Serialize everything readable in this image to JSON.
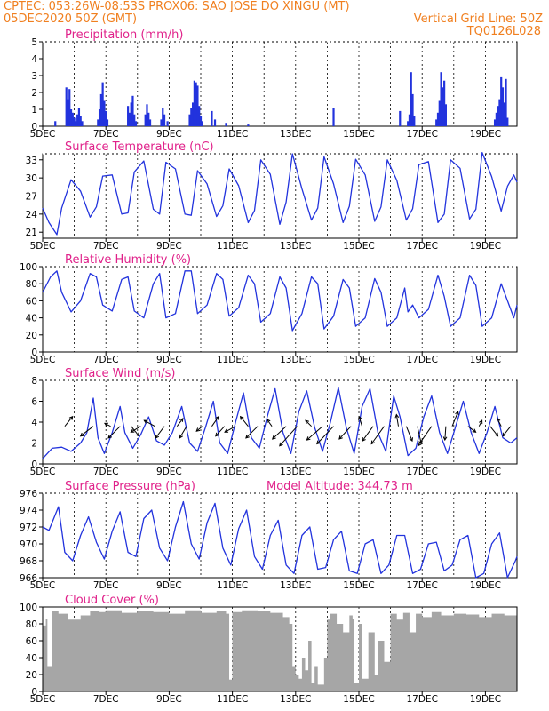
{
  "header": {
    "line1": "CPTEC:  053:26W-08:53S  PROX06: SAO JOSE DO XINGU (MT)",
    "line2_left": "05DEC2020 50Z (GMT)",
    "line2_right": "Vertical Grid Line: 50Z",
    "line3_right": "TQ0126L028"
  },
  "colors": {
    "header": "#f07f1f",
    "title": "#e0218a",
    "line": "#2233dd",
    "cloud": "#a6a6a6",
    "arrow": "#000000"
  },
  "x_axis": {
    "labels": [
      "5DEC",
      "7DEC",
      "9DEC",
      "11DEC",
      "13DEC",
      "15DEC",
      "17DEC",
      "19DEC"
    ],
    "label_days": [
      5,
      7,
      9,
      11,
      13,
      15,
      17,
      19
    ],
    "range_days": [
      5,
      20
    ]
  },
  "chart_data": [
    {
      "type": "bar",
      "title": "Precipitation (mm/h)",
      "ylim": [
        0,
        5
      ],
      "yticks": [
        "0",
        "1",
        "2",
        "3",
        "4",
        "5"
      ],
      "bars": [
        [
          5.4,
          0.3
        ],
        [
          5.75,
          2.3
        ],
        [
          5.8,
          1.6
        ],
        [
          5.85,
          2.2
        ],
        [
          5.9,
          1.0
        ],
        [
          5.95,
          0.8
        ],
        [
          6.0,
          0.5
        ],
        [
          6.05,
          0.3
        ],
        [
          6.1,
          0.7
        ],
        [
          6.15,
          1.1
        ],
        [
          6.2,
          0.6
        ],
        [
          6.25,
          0.3
        ],
        [
          6.75,
          0.4
        ],
        [
          6.8,
          1.0
        ],
        [
          6.85,
          1.9
        ],
        [
          6.9,
          2.6
        ],
        [
          6.95,
          1.5
        ],
        [
          7.0,
          0.9
        ],
        [
          7.05,
          0.4
        ],
        [
          7.7,
          1.2
        ],
        [
          7.75,
          0.8
        ],
        [
          7.8,
          1.4
        ],
        [
          7.85,
          1.8
        ],
        [
          7.9,
          0.7
        ],
        [
          7.95,
          0.3
        ],
        [
          8.25,
          0.7
        ],
        [
          8.3,
          1.3
        ],
        [
          8.35,
          0.8
        ],
        [
          8.4,
          0.4
        ],
        [
          8.75,
          0.4
        ],
        [
          8.8,
          1.1
        ],
        [
          8.85,
          0.7
        ],
        [
          8.95,
          0.3
        ],
        [
          9.65,
          0.7
        ],
        [
          9.7,
          1.1
        ],
        [
          9.75,
          1.4
        ],
        [
          9.8,
          2.7
        ],
        [
          9.85,
          2.6
        ],
        [
          9.9,
          2.4
        ],
        [
          9.95,
          1.2
        ],
        [
          10.0,
          0.6
        ],
        [
          10.05,
          0.3
        ],
        [
          10.35,
          0.9
        ],
        [
          10.45,
          0.4
        ],
        [
          10.8,
          0.2
        ],
        [
          11.5,
          0.1
        ],
        [
          14.2,
          1.1
        ],
        [
          16.3,
          0.9
        ],
        [
          16.55,
          0.3
        ],
        [
          16.6,
          0.7
        ],
        [
          16.65,
          3.2
        ],
        [
          16.7,
          1.9
        ],
        [
          16.75,
          0.6
        ],
        [
          17.45,
          0.4
        ],
        [
          17.5,
          0.8
        ],
        [
          17.55,
          1.5
        ],
        [
          17.6,
          3.2
        ],
        [
          17.65,
          2.3
        ],
        [
          17.7,
          2.7
        ],
        [
          17.75,
          1.3
        ],
        [
          19.3,
          0.4
        ],
        [
          19.35,
          0.8
        ],
        [
          19.4,
          1.2
        ],
        [
          19.45,
          1.6
        ],
        [
          19.5,
          2.9
        ],
        [
          19.55,
          2.3
        ],
        [
          19.6,
          1.4
        ],
        [
          19.65,
          2.8
        ],
        [
          19.7,
          0.5
        ]
      ]
    },
    {
      "type": "line",
      "title": "Surface Temperature (nC)",
      "ylim": [
        20,
        34
      ],
      "yticks": [
        "21",
        "24",
        "27",
        "30",
        "33"
      ],
      "ytick_values": [
        21,
        24,
        27,
        30,
        33
      ],
      "x": [
        5.0,
        5.2,
        5.45,
        5.6,
        5.9,
        6.2,
        6.5,
        6.7,
        6.9,
        7.2,
        7.5,
        7.7,
        7.9,
        8.2,
        8.5,
        8.7,
        8.9,
        9.2,
        9.5,
        9.7,
        9.9,
        10.2,
        10.5,
        10.7,
        10.9,
        11.2,
        11.5,
        11.7,
        11.9,
        12.2,
        12.5,
        12.7,
        12.9,
        13.2,
        13.5,
        13.7,
        13.9,
        14.2,
        14.5,
        14.7,
        14.9,
        15.2,
        15.5,
        15.7,
        15.9,
        16.2,
        16.5,
        16.7,
        16.9,
        17.2,
        17.5,
        17.7,
        17.9,
        18.2,
        18.5,
        18.7,
        18.9,
        19.2,
        19.5,
        19.7,
        19.9,
        20.0
      ],
      "values": [
        25.0,
        22.6,
        20.6,
        25.0,
        29.7,
        27.8,
        23.5,
        25.2,
        30.3,
        30.5,
        24.0,
        24.2,
        31.0,
        32.8,
        24.8,
        24.0,
        32.6,
        31.5,
        24.0,
        23.8,
        31.2,
        29.0,
        23.6,
        25.4,
        31.5,
        28.7,
        22.6,
        24.6,
        33.0,
        30.6,
        22.3,
        26.0,
        34.0,
        28.2,
        23.0,
        25.0,
        33.5,
        29.0,
        22.6,
        25.3,
        33.1,
        30.5,
        22.8,
        25.2,
        33.0,
        29.6,
        23.0,
        24.9,
        32.2,
        32.7,
        22.6,
        24.0,
        33.0,
        31.6,
        23.2,
        24.8,
        34.2,
        30.2,
        24.5,
        28.6,
        30.5,
        29.3
      ]
    },
    {
      "type": "line",
      "title": "Relative Humidity (%)",
      "ylim": [
        0,
        100
      ],
      "yticks": [
        "0",
        "20",
        "40",
        "60",
        "80",
        "100"
      ],
      "ytick_values": [
        0,
        20,
        40,
        60,
        80,
        100
      ],
      "x": [
        5.0,
        5.25,
        5.45,
        5.6,
        5.9,
        6.2,
        6.5,
        6.7,
        6.9,
        7.2,
        7.5,
        7.7,
        7.9,
        8.2,
        8.5,
        8.7,
        8.9,
        9.2,
        9.5,
        9.7,
        9.9,
        10.2,
        10.5,
        10.7,
        10.9,
        11.2,
        11.5,
        11.7,
        11.9,
        12.2,
        12.5,
        12.7,
        12.9,
        13.2,
        13.5,
        13.7,
        13.9,
        14.2,
        14.5,
        14.7,
        14.9,
        15.2,
        15.5,
        15.7,
        15.9,
        16.2,
        16.45,
        16.55,
        16.7,
        16.9,
        17.2,
        17.5,
        17.7,
        17.9,
        18.2,
        18.5,
        18.7,
        18.9,
        19.2,
        19.5,
        19.7,
        19.9,
        20.0
      ],
      "values": [
        70,
        88,
        95,
        70,
        47,
        60,
        92,
        88,
        55,
        48,
        85,
        88,
        48,
        40,
        80,
        92,
        40,
        45,
        95,
        95,
        45,
        55,
        92,
        85,
        42,
        52,
        90,
        80,
        35,
        45,
        88,
        75,
        25,
        45,
        88,
        80,
        27,
        42,
        85,
        75,
        30,
        40,
        86,
        70,
        30,
        40,
        75,
        47,
        55,
        40,
        50,
        90,
        65,
        30,
        40,
        90,
        78,
        30,
        40,
        80,
        60,
        40,
        55
      ]
    },
    {
      "type": "line",
      "title": "Surface Wind (m/s)",
      "ylim": [
        0,
        8
      ],
      "yticks": [
        "0",
        "2",
        "4",
        "6",
        "8"
      ],
      "ytick_values": [
        0,
        2,
        4,
        6,
        8
      ],
      "x": [
        5.0,
        5.3,
        5.6,
        5.9,
        6.2,
        6.4,
        6.6,
        6.75,
        6.95,
        7.2,
        7.45,
        7.6,
        7.85,
        8.1,
        8.35,
        8.6,
        8.85,
        9.1,
        9.4,
        9.65,
        9.9,
        10.15,
        10.4,
        10.6,
        10.85,
        11.1,
        11.35,
        11.6,
        11.85,
        12.1,
        12.35,
        12.6,
        12.85,
        13.1,
        13.35,
        13.6,
        13.85,
        14.1,
        14.35,
        14.6,
        14.85,
        15.1,
        15.35,
        15.6,
        15.85,
        16.1,
        16.3,
        16.55,
        16.8,
        17.05,
        17.3,
        17.55,
        17.8,
        18.05,
        18.3,
        18.55,
        18.8,
        19.05,
        19.3,
        19.55,
        19.8,
        20.0
      ],
      "values": [
        0.5,
        1.5,
        1.6,
        1.2,
        2.0,
        3.0,
        6.3,
        2.5,
        1.0,
        3.0,
        5.5,
        3.0,
        1.5,
        2.8,
        4.5,
        2.2,
        1.8,
        3.0,
        5.5,
        2.0,
        1.2,
        3.5,
        6.0,
        2.0,
        1.0,
        4.0,
        6.8,
        2.5,
        1.5,
        4.5,
        7.2,
        3.0,
        1.0,
        5.0,
        7.0,
        3.5,
        1.2,
        4.0,
        7.3,
        3.5,
        1.0,
        5.5,
        7.2,
        3.0,
        1.2,
        6.5,
        4.5,
        0.8,
        1.5,
        4.5,
        6.5,
        3.0,
        1.0,
        3.5,
        6.0,
        3.0,
        1.0,
        3.0,
        5.5,
        2.5,
        2.0,
        2.5
      ],
      "arrows": [
        {
          "day": 5.7,
          "u": 0.8,
          "v": 1.0
        },
        {
          "day": 6.6,
          "u": -1.3,
          "v": -1.0
        },
        {
          "day": 7.15,
          "u": -0.6,
          "v": 0.3
        },
        {
          "day": 7.45,
          "u": -1.2,
          "v": -1.2
        },
        {
          "day": 7.8,
          "u": 0.8,
          "v": -1.0
        },
        {
          "day": 8.1,
          "u": -1.0,
          "v": -0.6
        },
        {
          "day": 8.55,
          "u": -1.1,
          "v": 0.6
        },
        {
          "day": 8.85,
          "u": -0.9,
          "v": -1.2
        },
        {
          "day": 9.25,
          "u": 0.6,
          "v": 0.8
        },
        {
          "day": 9.55,
          "u": -0.7,
          "v": -1.2
        },
        {
          "day": 10.05,
          "u": -0.6,
          "v": -0.5
        },
        {
          "day": 10.35,
          "u": 0.7,
          "v": 1.0
        },
        {
          "day": 10.75,
          "u": -0.9,
          "v": -1.0
        },
        {
          "day": 11.1,
          "u": -1.1,
          "v": -0.6
        },
        {
          "day": 11.5,
          "u": -0.8,
          "v": 1.0
        },
        {
          "day": 11.8,
          "u": -1.2,
          "v": -1.2
        },
        {
          "day": 12.25,
          "u": -0.5,
          "v": 0.7
        },
        {
          "day": 12.7,
          "u": -1.4,
          "v": -1.3
        },
        {
          "day": 13.05,
          "u": -1.8,
          "v": -2.0
        },
        {
          "day": 13.5,
          "u": -0.6,
          "v": 0.6
        },
        {
          "day": 13.85,
          "u": -1.6,
          "v": -1.4
        },
        {
          "day": 14.2,
          "u": -1.7,
          "v": -1.8
        },
        {
          "day": 14.75,
          "u": -1.2,
          "v": -1.3
        },
        {
          "day": 15.1,
          "u": -0.3,
          "v": 1.0
        },
        {
          "day": 15.45,
          "u": -1.1,
          "v": -1.5
        },
        {
          "day": 15.8,
          "u": -1.3,
          "v": -1.8
        },
        {
          "day": 16.25,
          "u": -0.2,
          "v": 1.2
        },
        {
          "day": 16.5,
          "u": 0.6,
          "v": -1.5
        },
        {
          "day": 16.85,
          "u": 0.4,
          "v": -1.8
        },
        {
          "day": 17.3,
          "u": -1.4,
          "v": -2.0
        },
        {
          "day": 17.75,
          "u": -0.1,
          "v": -1.4
        },
        {
          "day": 17.95,
          "u": 0.6,
          "v": 1.5
        },
        {
          "day": 18.45,
          "u": 0.8,
          "v": -0.6
        },
        {
          "day": 18.8,
          "u": 0.3,
          "v": 0.6
        },
        {
          "day": 19.15,
          "u": 0.8,
          "v": -1.0
        },
        {
          "day": 19.5,
          "u": -0.4,
          "v": 0.8
        },
        {
          "day": 19.8,
          "u": -0.8,
          "v": -1.0
        }
      ]
    },
    {
      "type": "line",
      "title": "Surface Pressure (hPa)",
      "annotation": "Model Altitude: 344.73 m",
      "ylim": [
        966,
        976
      ],
      "yticks": [
        "966",
        "968",
        "970",
        "972",
        "974",
        "976"
      ],
      "ytick_values": [
        966,
        968,
        970,
        972,
        974,
        976
      ],
      "x": [
        5.0,
        5.2,
        5.5,
        5.7,
        5.95,
        6.2,
        6.45,
        6.7,
        6.95,
        7.2,
        7.45,
        7.7,
        7.95,
        8.2,
        8.45,
        8.7,
        8.95,
        9.2,
        9.45,
        9.7,
        9.95,
        10.2,
        10.45,
        10.7,
        10.95,
        11.2,
        11.45,
        11.7,
        11.95,
        12.2,
        12.45,
        12.7,
        12.95,
        13.2,
        13.45,
        13.7,
        13.95,
        14.2,
        14.45,
        14.7,
        14.95,
        15.2,
        15.45,
        15.7,
        15.95,
        16.2,
        16.45,
        16.7,
        16.95,
        17.2,
        17.45,
        17.7,
        17.95,
        18.2,
        18.45,
        18.7,
        18.95,
        19.2,
        19.45,
        19.7,
        19.95,
        20.0
      ],
      "values": [
        972,
        971.6,
        974.4,
        969.0,
        968.0,
        971.0,
        973.2,
        970.2,
        968.2,
        971.5,
        973.8,
        969.0,
        968.5,
        973.0,
        974.0,
        969.5,
        968.0,
        972.0,
        975.0,
        970.0,
        968.2,
        972.5,
        974.8,
        969.5,
        967.5,
        971.8,
        974.0,
        968.5,
        967.0,
        971.0,
        972.8,
        967.5,
        966.5,
        971.0,
        972.0,
        967.0,
        967.2,
        970.5,
        971.5,
        966.8,
        966.5,
        970.0,
        970.5,
        966.5,
        967.5,
        971.0,
        971.0,
        966.5,
        967.0,
        970.0,
        970.2,
        966.8,
        967.5,
        970.5,
        971.0,
        966.0,
        966.5,
        970.0,
        971.3,
        966.0,
        968.0,
        968.5
      ]
    },
    {
      "type": "area",
      "title": "Cloud Cover (%)",
      "ylim": [
        0,
        100
      ],
      "yticks": [
        "0",
        "20",
        "40",
        "60",
        "80",
        "100"
      ],
      "ytick_values": [
        0,
        20,
        40,
        60,
        80,
        100
      ],
      "x": [
        5.0,
        5.1,
        5.15,
        5.3,
        5.5,
        5.8,
        6.2,
        6.5,
        6.8,
        7.0,
        7.5,
        8.0,
        8.5,
        9.0,
        9.5,
        10.0,
        10.5,
        10.8,
        10.9,
        11.0,
        11.3,
        11.8,
        12.2,
        12.6,
        12.8,
        12.9,
        13.0,
        13.1,
        13.2,
        13.3,
        13.4,
        13.5,
        13.6,
        13.7,
        13.9,
        14.0,
        14.1,
        14.3,
        14.5,
        14.7,
        14.8,
        14.85,
        15.0,
        15.1,
        15.3,
        15.5,
        15.6,
        15.8,
        16.0,
        16.2,
        16.4,
        16.6,
        16.8,
        17.0,
        17.3,
        17.6,
        18.0,
        18.4,
        18.8,
        19.2,
        19.6,
        20.0
      ],
      "values": [
        78,
        86,
        30,
        95,
        92,
        85,
        90,
        95,
        94,
        96,
        93,
        95,
        94,
        92,
        96,
        93,
        95,
        92,
        14,
        94,
        96,
        95,
        93,
        88,
        80,
        30,
        20,
        15,
        40,
        25,
        60,
        10,
        30,
        8,
        40,
        85,
        92,
        80,
        70,
        90,
        86,
        10,
        80,
        15,
        70,
        20,
        60,
        35,
        92,
        85,
        93,
        70,
        92,
        88,
        94,
        90,
        92,
        91,
        88,
        92,
        90,
        88
      ]
    }
  ]
}
